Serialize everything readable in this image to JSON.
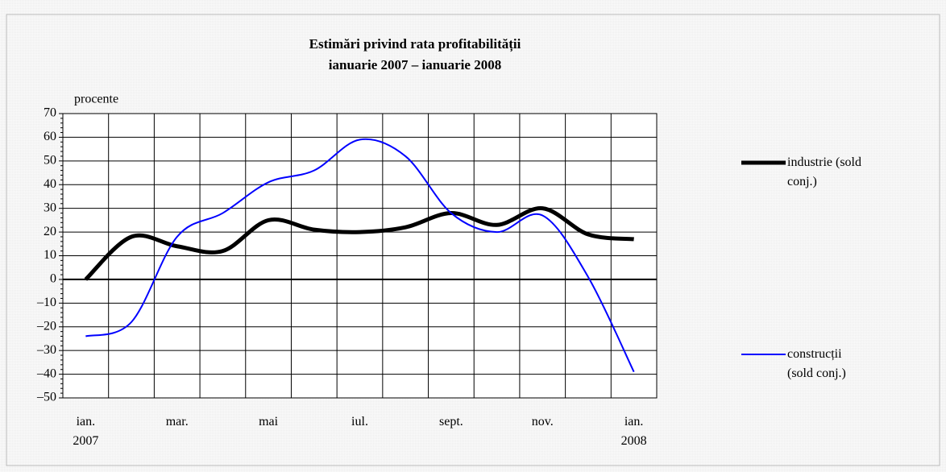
{
  "chart_data": {
    "type": "line",
    "title": "Estimări privind rata profitabilității",
    "subtitle": "ianuarie 2007 – ianuarie 2008",
    "y_label": "procente",
    "categories": [
      "ian. 2007",
      null,
      "mar.",
      null,
      "mai",
      null,
      "iul.",
      null,
      "sept.",
      null,
      "nov.",
      null,
      "ian. 2008"
    ],
    "series": [
      {
        "name": "industrie (sold conj.)",
        "color": "#000000",
        "width": 5,
        "values": [
          0,
          18,
          14,
          12,
          25,
          21,
          20,
          22,
          28,
          23,
          30,
          19,
          17
        ]
      },
      {
        "name": "construcții (sold conj.)",
        "color": "#0000ff",
        "width": 2,
        "values": [
          -24,
          -18,
          18,
          28,
          41,
          46,
          59,
          52,
          28,
          20,
          27,
          1,
          -39
        ]
      }
    ],
    "ylim": [
      -50,
      70
    ],
    "yticks": [
      {
        "value": -50,
        "label": "–50"
      },
      {
        "value": -40,
        "label": "–40"
      },
      {
        "value": -30,
        "label": "–30"
      },
      {
        "value": -20,
        "label": "–20"
      },
      {
        "value": -10,
        "label": "–10"
      },
      0,
      10,
      20,
      30,
      40,
      50,
      60,
      70
    ],
    "grid": true
  }
}
